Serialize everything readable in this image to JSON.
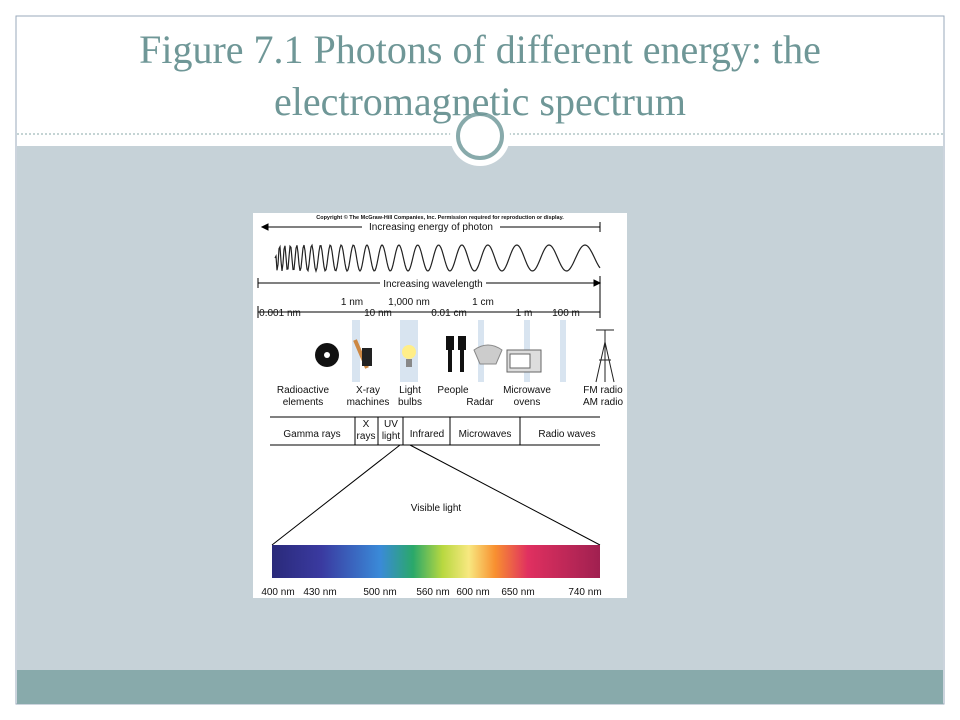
{
  "slide": {
    "title_lines": [
      "Figure 7.1  Photons of different energy: the",
      "electromagnetic spectrum"
    ]
  },
  "figure": {
    "copyright": "Copyright © The McGraw-Hill Companies, Inc. Permission required for reproduction or display.",
    "energy_arrow": "Increasing energy of photon",
    "wavelength_arrow": "Increasing wavelength",
    "scale_labels": [
      "0.001 nm",
      "1 nm",
      "10 nm",
      "1,000 nm",
      "0.01 cm",
      "1 cm",
      "1 m",
      "100 m"
    ],
    "sources": [
      [
        "Radioactive",
        "elements"
      ],
      [
        "X-ray",
        "machines"
      ],
      [
        "Light",
        "bulbs"
      ],
      [
        "People"
      ],
      [
        "Radar"
      ],
      [
        "Microwave",
        "ovens"
      ],
      [
        "FM radio",
        "AM radio"
      ]
    ],
    "bands": [
      [
        "Gamma rays"
      ],
      [
        "X",
        "rays"
      ],
      [
        "UV",
        "light"
      ],
      [
        "Infrared"
      ],
      [
        "Microwaves"
      ],
      [
        "Radio waves"
      ]
    ],
    "visible_label": "Visible light",
    "visible_scale": [
      "400 nm",
      "430 nm",
      "500 nm",
      "560 nm",
      "600 nm",
      "650 nm",
      "740 nm"
    ]
  }
}
